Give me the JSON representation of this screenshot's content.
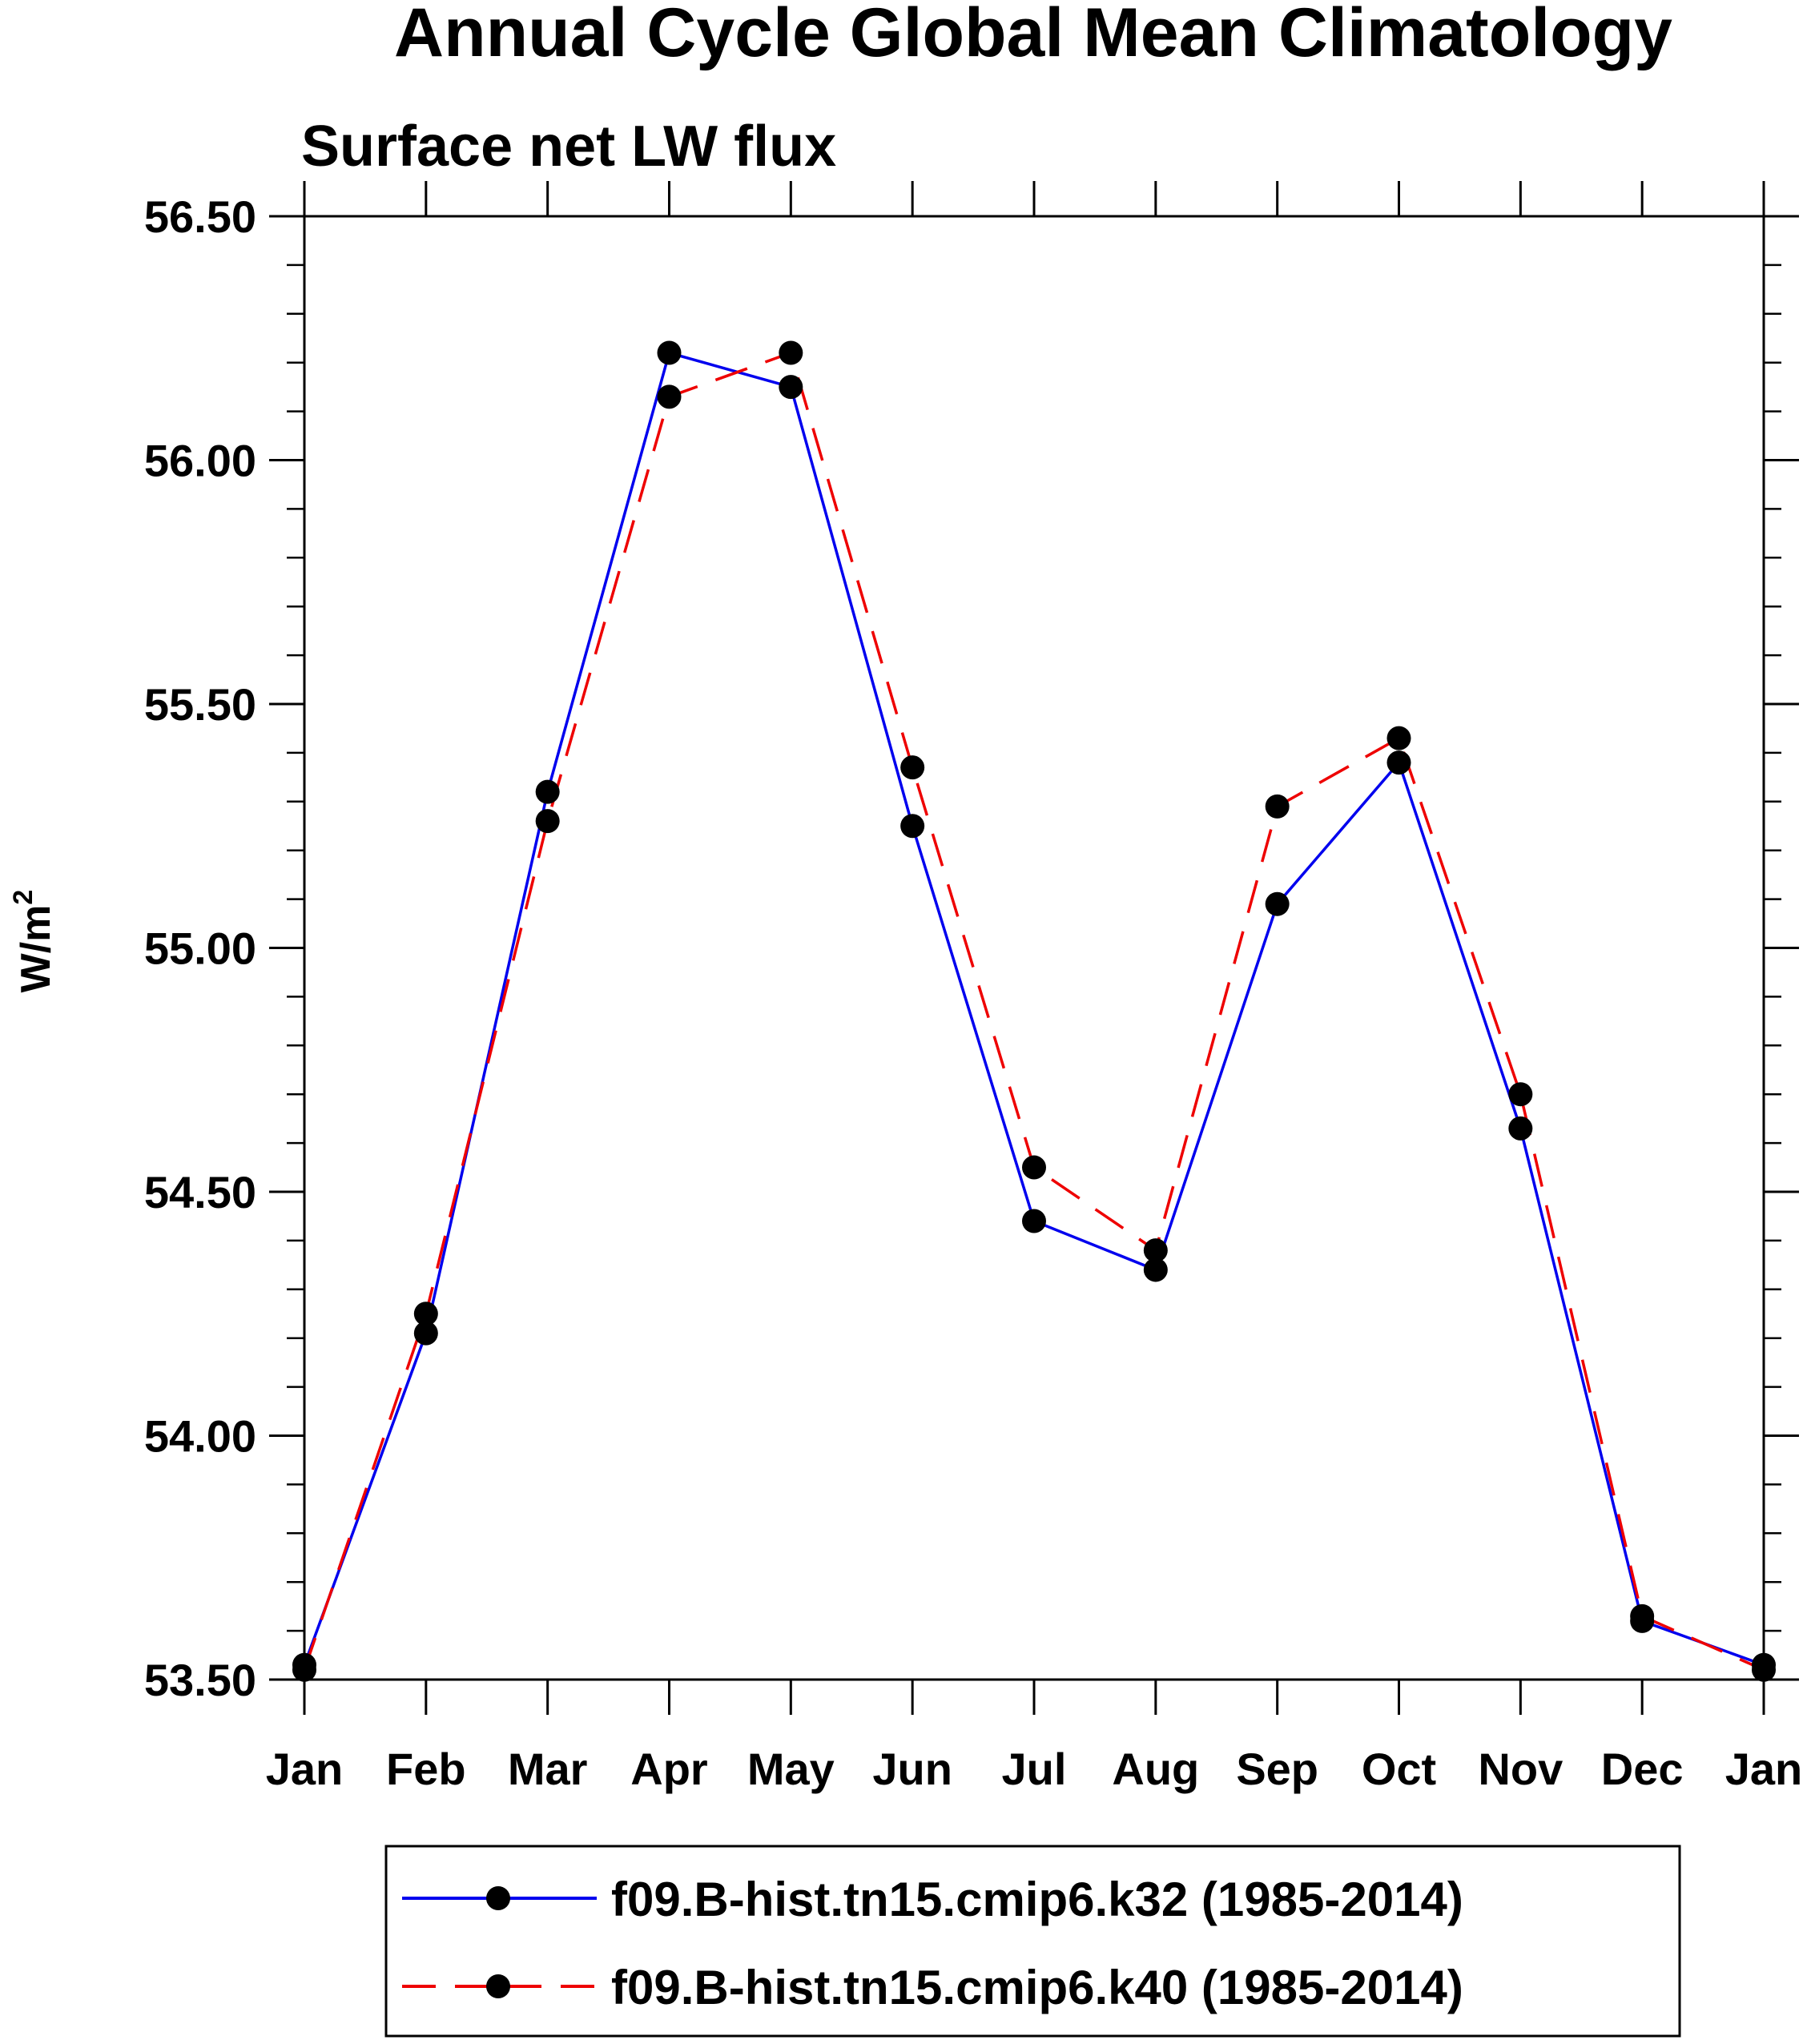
{
  "chart_data": {
    "type": "line",
    "title": "Annual Cycle Global Mean Climatology",
    "subtitle": "Surface net LW flux",
    "xlabel": "",
    "ylabel": "W/m",
    "ylabel_superscript": "2",
    "categories": [
      "Jan",
      "Feb",
      "Mar",
      "Apr",
      "May",
      "Jun",
      "Jul",
      "Aug",
      "Sep",
      "Oct",
      "Nov",
      "Dec",
      "Jan"
    ],
    "ylim": [
      53.5,
      56.5
    ],
    "yticks": [
      "53.50",
      "54.00",
      "54.50",
      "55.00",
      "55.50",
      "56.00",
      "56.50"
    ],
    "ytick_values": [
      53.5,
      54.0,
      54.5,
      55.0,
      55.5,
      56.0,
      56.5
    ],
    "minor_step": 0.1,
    "grid": false,
    "legend_position": "bottom",
    "series": [
      {
        "name": "f09.B-hist.tn15.cmip6.k32 (1985-2014)",
        "color": "#0000ee",
        "dash": "solid",
        "marker": "filled-circle",
        "values": [
          53.53,
          54.21,
          55.32,
          56.22,
          56.15,
          55.25,
          54.44,
          54.34,
          55.09,
          55.38,
          54.63,
          53.62,
          53.53
        ]
      },
      {
        "name": "f09.B-hist.tn15.cmip6.k40 (1985-2014)",
        "color": "#ee0000",
        "dash": "dashed",
        "marker": "filled-circle",
        "values": [
          53.52,
          54.25,
          55.26,
          56.13,
          56.22,
          55.37,
          54.55,
          54.38,
          55.29,
          55.43,
          54.7,
          53.63,
          53.52
        ]
      }
    ]
  }
}
